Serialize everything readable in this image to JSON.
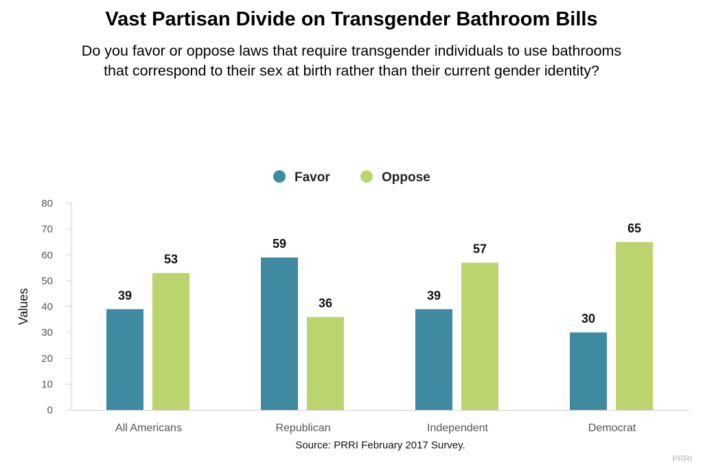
{
  "title": "Vast Partisan Divide on Transgender Bathroom Bills",
  "subtitle": {
    "line1": "Do you favor or oppose laws that require transgender individuals to use bathrooms",
    "line2": "that correspond to their sex at birth rather than their current gender identity?"
  },
  "source": "Source: PRRI February 2017 Survey.",
  "credit": "PRRI",
  "chart_data": {
    "type": "bar",
    "categories": [
      "All Americans",
      "Republican",
      "Independent",
      "Democrat"
    ],
    "series": [
      {
        "name": "Favor",
        "color": "#3d8aa1",
        "values": [
          39,
          59,
          39,
          30
        ]
      },
      {
        "name": "Oppose",
        "color": "#bcd46e",
        "values": [
          53,
          36,
          57,
          65
        ]
      }
    ],
    "ylabel": "Values",
    "xlabel": "",
    "ylim": [
      0,
      80
    ],
    "yticks": [
      0,
      10,
      20,
      30,
      40,
      50,
      60,
      70,
      80
    ],
    "grid": false,
    "legend_position": "top-center",
    "data_labels": true
  }
}
